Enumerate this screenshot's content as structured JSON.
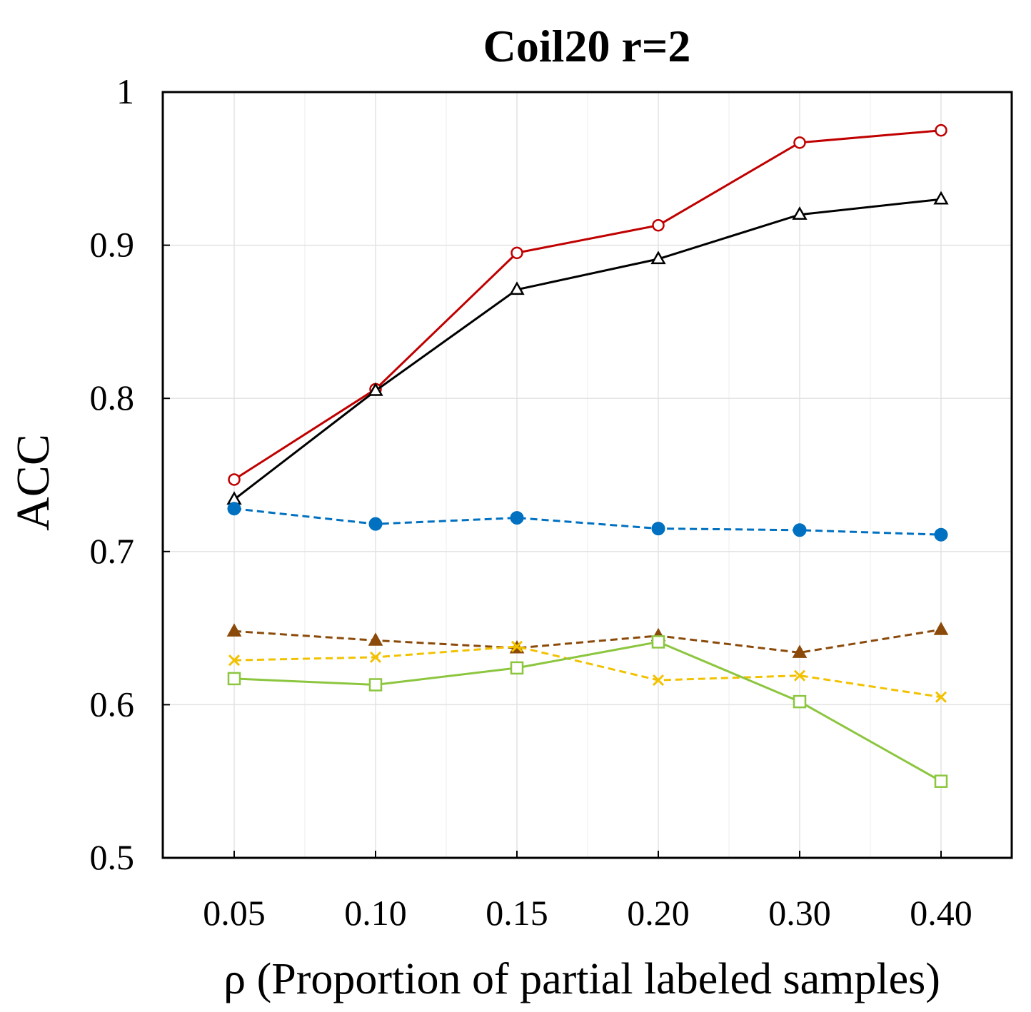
{
  "chart_data": {
    "type": "line",
    "title": "Coil20 r=2",
    "xlabel": "ρ (Proportion of partial labeled samples)",
    "ylabel": "ACC",
    "categories": [
      "0.05",
      "0.10",
      "0.15",
      "0.20",
      "0.30",
      "0.40"
    ],
    "ylim": [
      0.5,
      1.0
    ],
    "yticks": [
      "0.5",
      "0.6",
      "0.7",
      "0.8",
      "0.9",
      "1"
    ],
    "ytick_values": [
      0.5,
      0.6,
      0.7,
      0.8,
      0.9,
      1.0
    ],
    "grid": true,
    "legend": "none",
    "series": [
      {
        "name": "red-circle",
        "color": "#c00000",
        "marker": "circle-open",
        "dash": "solid",
        "values": [
          0.747,
          0.806,
          0.895,
          0.913,
          0.967,
          0.975
        ]
      },
      {
        "name": "black-triangle",
        "color": "#000000",
        "marker": "triangle-open",
        "dash": "solid",
        "values": [
          0.734,
          0.805,
          0.871,
          0.891,
          0.92,
          0.93
        ]
      },
      {
        "name": "blue-dot",
        "color": "#0070c0",
        "marker": "circle-filled",
        "dash": "dashed",
        "values": [
          0.728,
          0.718,
          0.722,
          0.715,
          0.714,
          0.711
        ]
      },
      {
        "name": "brown-triangle",
        "color": "#8b4a0a",
        "marker": "triangle-filled",
        "dash": "dashed",
        "values": [
          0.648,
          0.642,
          0.637,
          0.645,
          0.634,
          0.649
        ]
      },
      {
        "name": "yellow-cross",
        "color": "#f2c200",
        "marker": "x",
        "dash": "dashed",
        "values": [
          0.629,
          0.631,
          0.638,
          0.616,
          0.619,
          0.605
        ]
      },
      {
        "name": "green-square",
        "color": "#8cc63f",
        "marker": "square-open",
        "dash": "solid",
        "values": [
          0.617,
          0.613,
          0.624,
          0.641,
          0.602,
          0.55
        ]
      }
    ]
  }
}
